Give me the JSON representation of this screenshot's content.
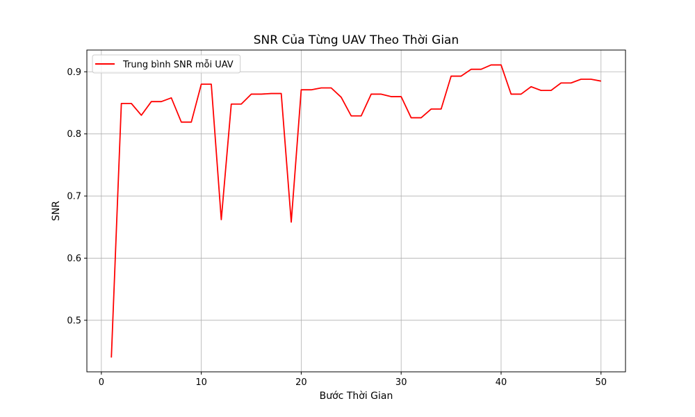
{
  "chart_data": {
    "type": "line",
    "title": "SNR Của Từng UAV Theo Thời Gian",
    "xlabel": "Bước Thời Gian",
    "ylabel": "SNR",
    "xlim": [
      -1.45,
      52.45
    ],
    "ylim": [
      0.417,
      0.935
    ],
    "xticks": [
      0,
      10,
      20,
      30,
      40,
      50
    ],
    "xtick_labels": [
      "0",
      "10",
      "20",
      "30",
      "40",
      "50"
    ],
    "yticks": [
      0.5,
      0.6,
      0.7,
      0.8,
      0.9
    ],
    "ytick_labels": [
      "0.5",
      "0.6",
      "0.7",
      "0.8",
      "0.9"
    ],
    "grid": true,
    "legend": {
      "position": "top-left",
      "entries": [
        "Trung bình SNR mỗi UAV"
      ]
    },
    "series": [
      {
        "name": "Trung bình SNR mỗi UAV",
        "color": "#ff0000",
        "x": [
          1,
          2,
          3,
          4,
          5,
          6,
          7,
          8,
          9,
          10,
          11,
          12,
          13,
          14,
          15,
          16,
          17,
          18,
          19,
          20,
          21,
          22,
          23,
          24,
          25,
          26,
          27,
          28,
          29,
          30,
          31,
          32,
          33,
          34,
          35,
          36,
          37,
          38,
          39,
          40,
          41,
          42,
          43,
          44,
          45,
          46,
          47,
          48,
          49,
          50
        ],
        "y": [
          0.44,
          0.849,
          0.849,
          0.83,
          0.852,
          0.852,
          0.858,
          0.819,
          0.819,
          0.88,
          0.88,
          0.662,
          0.848,
          0.848,
          0.864,
          0.864,
          0.865,
          0.865,
          0.658,
          0.871,
          0.871,
          0.874,
          0.874,
          0.859,
          0.829,
          0.829,
          0.864,
          0.864,
          0.86,
          0.86,
          0.826,
          0.826,
          0.84,
          0.84,
          0.893,
          0.893,
          0.904,
          0.904,
          0.911,
          0.911,
          0.864,
          0.864,
          0.876,
          0.87,
          0.87,
          0.882,
          0.882,
          0.888,
          0.888,
          0.885
        ]
      }
    ]
  }
}
